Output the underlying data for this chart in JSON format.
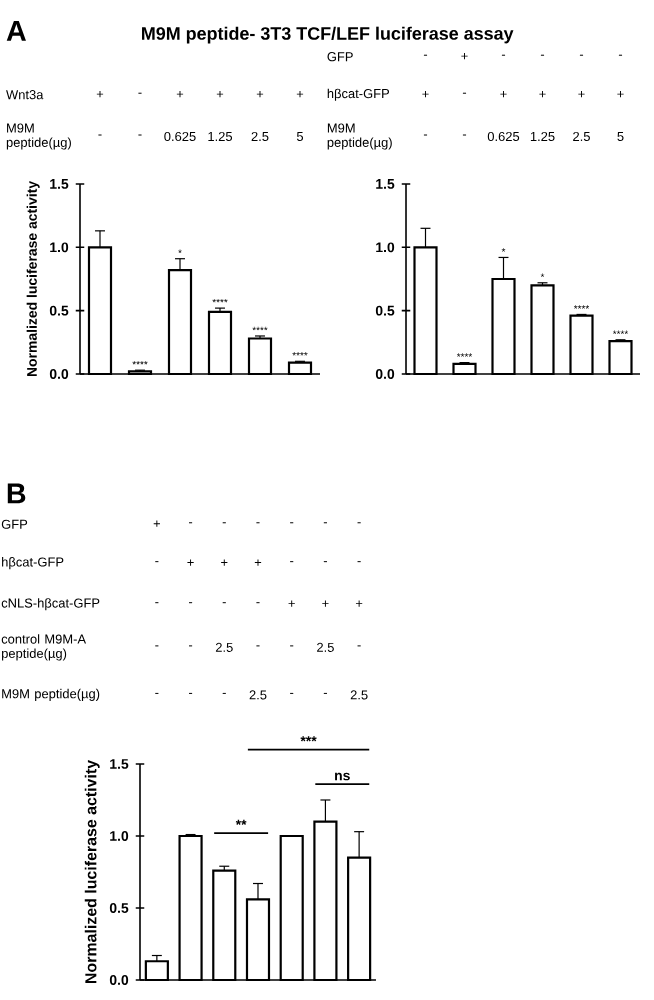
{
  "chart_data": [
    {
      "type": "bar",
      "title": "M9M peptide- 3T3 TCF/LEF luciferase assay",
      "ylabel": "Normalized luciferase activity",
      "categories": [
        null,
        null,
        null,
        null,
        null,
        null
      ],
      "values": [
        1.0,
        0.02,
        0.82,
        0.49,
        0.28,
        0.09
      ],
      "errors": [
        0.13,
        0.01,
        0.09,
        0.03,
        0.02,
        0.01
      ],
      "value_labels": [
        null,
        "****",
        "*",
        "****",
        "****",
        "****"
      ],
      "color": "#ffffff",
      "ylim": [
        0,
        1.5
      ],
      "yticks": [
        {
          "value": 0,
          "label": "0.0"
        },
        {
          "value": 0.5,
          "label": "0.5"
        },
        {
          "value": 1.0,
          "label": "1.0"
        },
        {
          "value": 1.5,
          "label": "1.5"
        }
      ],
      "annotations": [
        "A",
        "Wnt3a",
        "+",
        "-",
        "+",
        "+",
        "+",
        "+",
        "M9M peptide(µg)",
        "-",
        "-",
        "0.625",
        "1.25",
        "2.5",
        "5"
      ]
    },
    {
      "type": "bar",
      "categories": [
        null,
        null,
        null,
        null,
        null,
        null
      ],
      "values": [
        1.0,
        0.08,
        0.75,
        0.7,
        0.46,
        0.26
      ],
      "errors": [
        0.15,
        0.01,
        0.17,
        0.02,
        0.01,
        0.01
      ],
      "value_labels": [
        null,
        "****",
        "*",
        "*",
        "****",
        "****"
      ],
      "color": "#ffffff",
      "ylim": [
        0,
        1.5
      ],
      "yticks": [
        {
          "value": 0,
          "label": "0.0"
        },
        {
          "value": 0.5,
          "label": "0.5"
        },
        {
          "value": 1.0,
          "label": "1.0"
        },
        {
          "value": 1.5,
          "label": "1.5"
        }
      ],
      "annotations": [
        "GFP",
        "-",
        "+",
        "-",
        "-",
        "-",
        "-",
        "hβcat-GFP",
        "+",
        "-",
        "+",
        "+",
        "+",
        "+",
        "M9M peptide(µg)",
        "-",
        "-",
        "0.625",
        "1.25",
        "2.5",
        "5"
      ]
    },
    {
      "type": "bar",
      "ylabel": "Normalized luciferase activity",
      "categories": [
        null,
        null,
        null,
        null,
        null,
        null,
        null
      ],
      "values": [
        0.13,
        1.0,
        0.76,
        0.56,
        1.0,
        1.1,
        0.85
      ],
      "errors": [
        0.04,
        0.01,
        0.03,
        0.11,
        0,
        0.15,
        0.18
      ],
      "color": "#ffffff",
      "ylim": [
        0,
        1.5
      ],
      "yticks": [
        {
          "value": 0,
          "label": "0.0"
        },
        {
          "value": 0.5,
          "label": "0.5"
        },
        {
          "value": 1.0,
          "label": "1.0"
        },
        {
          "value": 1.5,
          "label": "1.5"
        }
      ],
      "annotations": [
        "B",
        "GFP",
        "+",
        "-",
        "-",
        "-",
        "-",
        "-",
        "-",
        "hβcat-GFP",
        "-",
        "+",
        "+",
        "+",
        "-",
        "-",
        "-",
        "cNLS-hβcat-GFP",
        "-",
        "-",
        "-",
        "-",
        "+",
        "+",
        "+",
        "control M9M-A peptide(µg)",
        "-",
        "-",
        "2.5",
        "-",
        "-",
        "2.5",
        "-",
        "M9M peptide(µg)",
        "-",
        "-",
        "-",
        "2.5",
        "-",
        "-",
        "2.5",
        "**",
        "***",
        "ns"
      ]
    }
  ]
}
